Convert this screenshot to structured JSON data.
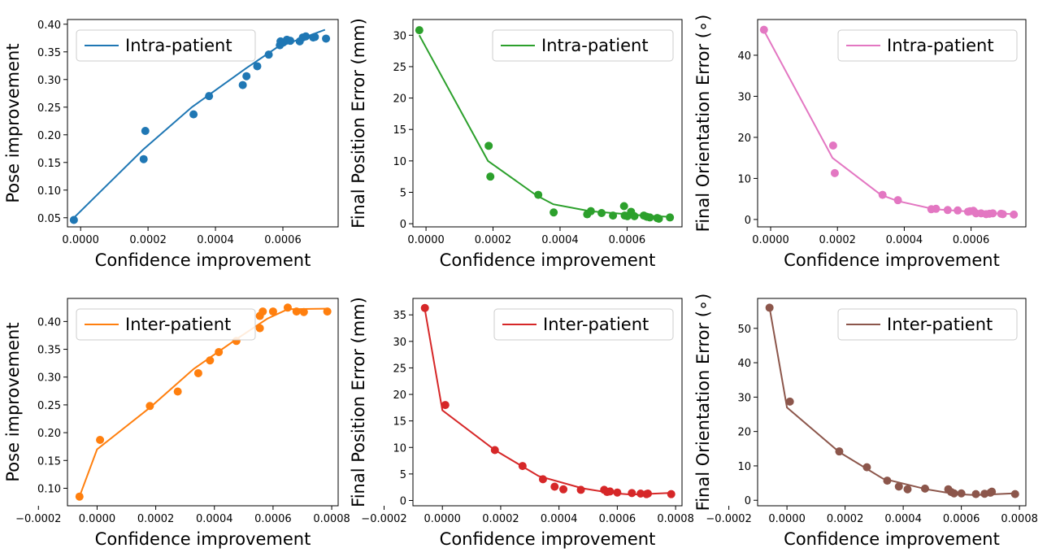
{
  "chart_data": [
    {
      "type": "scatter",
      "name": "pose-intra",
      "color": "#1f77b4",
      "xlabel": "Confidence improvement",
      "ylabel": "Pose improvement",
      "legend": "Intra-patient",
      "legend_position": "upper-left",
      "xlim": [
        -3.9e-05,
        0.000764
      ],
      "ylim": [
        0.0335,
        0.4085
      ],
      "xticks": [
        0,
        0.0002,
        0.0004,
        0.0006
      ],
      "xtick_labels": [
        "0.0000",
        "0.0002",
        "0.0004",
        "0.0006"
      ],
      "yticks": [
        0.05,
        0.1,
        0.15,
        0.2,
        0.25,
        0.3,
        0.35,
        0.4
      ],
      "ytick_labels": [
        "0.05",
        "0.10",
        "0.15",
        "0.20",
        "0.25",
        "0.30",
        "0.35",
        "0.40"
      ],
      "points": [
        [
          -2e-05,
          0.046
        ],
        [
          0.000187,
          0.156
        ],
        [
          0.000192,
          0.207
        ],
        [
          0.000335,
          0.237
        ],
        [
          0.000381,
          0.27
        ],
        [
          0.000481,
          0.29
        ],
        [
          0.000492,
          0.306
        ],
        [
          0.000524,
          0.324
        ],
        [
          0.000558,
          0.345
        ],
        [
          0.000591,
          0.362
        ],
        [
          0.000593,
          0.369
        ],
        [
          0.000601,
          0.367
        ],
        [
          0.000612,
          0.372
        ],
        [
          0.000622,
          0.37
        ],
        [
          0.00065,
          0.369
        ],
        [
          0.000659,
          0.376
        ],
        [
          0.000668,
          0.378
        ],
        [
          0.00069,
          0.376
        ],
        [
          0.000695,
          0.377
        ],
        [
          0.000728,
          0.374
        ]
      ],
      "line": [
        [
          -2e-05,
          0.05
        ],
        [
          0.000185,
          0.173
        ],
        [
          0.00033,
          0.25
        ],
        [
          0.00049,
          0.32
        ],
        [
          0.00058,
          0.357
        ],
        [
          0.00065,
          0.373
        ],
        [
          0.000725,
          0.39
        ]
      ]
    },
    {
      "type": "scatter",
      "name": "position-intra",
      "color": "#2ca02c",
      "xlabel": "Confidence improvement",
      "ylabel": "Final Position Error (mm)",
      "legend": "Intra-patient",
      "legend_position": "upper-right",
      "xlim": [
        -3.9e-05,
        0.000764
      ],
      "ylim": [
        -0.5,
        32.5
      ],
      "xticks": [
        0,
        0.0002,
        0.0004,
        0.0006
      ],
      "xtick_labels": [
        "0.0000",
        "0.0002",
        "0.0004",
        "0.0006"
      ],
      "yticks": [
        0,
        5,
        10,
        15,
        20,
        25,
        30
      ],
      "ytick_labels": [
        "0",
        "5",
        "10",
        "15",
        "20",
        "25",
        "30"
      ],
      "points": [
        [
          -2e-05,
          30.8
        ],
        [
          0.000187,
          12.4
        ],
        [
          0.000192,
          7.5
        ],
        [
          0.000335,
          4.6
        ],
        [
          0.000381,
          1.8
        ],
        [
          0.000481,
          1.5
        ],
        [
          0.000492,
          2.0
        ],
        [
          0.000524,
          1.7
        ],
        [
          0.000558,
          1.3
        ],
        [
          0.000591,
          2.8
        ],
        [
          0.000593,
          1.3
        ],
        [
          0.000601,
          1.2
        ],
        [
          0.000612,
          1.9
        ],
        [
          0.000622,
          1.2
        ],
        [
          0.00065,
          1.3
        ],
        [
          0.000659,
          1.1
        ],
        [
          0.000668,
          1.0
        ],
        [
          0.00069,
          0.9
        ],
        [
          0.000695,
          0.8
        ],
        [
          0.000728,
          1.0
        ]
      ],
      "line": [
        [
          -2e-05,
          30.0
        ],
        [
          0.000185,
          10.0
        ],
        [
          0.00033,
          4.5
        ],
        [
          0.00038,
          3.1
        ],
        [
          0.00049,
          2.0
        ],
        [
          0.00058,
          1.6
        ],
        [
          0.00065,
          1.3
        ],
        [
          0.000725,
          1.1
        ]
      ]
    },
    {
      "type": "scatter",
      "name": "orientation-intra",
      "color": "#e377c2",
      "xlabel": "Confidence improvement",
      "ylabel": "Final Orientation Error (∘)",
      "legend": "Intra-patient",
      "legend_position": "upper-right",
      "xlim": [
        -3.9e-05,
        0.000764
      ],
      "ylim": [
        -1.8,
        48.7
      ],
      "xticks": [
        0,
        0.0002,
        0.0004,
        0.0006
      ],
      "xtick_labels": [
        "0.0000",
        "0.0002",
        "0.0004",
        "0.0006"
      ],
      "yticks": [
        0,
        10,
        20,
        30,
        40
      ],
      "ytick_labels": [
        "0",
        "10",
        "20",
        "30",
        "40"
      ],
      "points": [
        [
          -2e-05,
          46.2
        ],
        [
          0.000187,
          18.0
        ],
        [
          0.000192,
          11.3
        ],
        [
          0.000335,
          6.0
        ],
        [
          0.000381,
          4.7
        ],
        [
          0.000481,
          2.5
        ],
        [
          0.000495,
          2.6
        ],
        [
          0.00053,
          2.3
        ],
        [
          0.00056,
          2.2
        ],
        [
          0.000591,
          1.9
        ],
        [
          0.000597,
          2.0
        ],
        [
          0.000607,
          2.1
        ],
        [
          0.000615,
          1.5
        ],
        [
          0.00063,
          1.5
        ],
        [
          0.000645,
          1.3
        ],
        [
          0.000655,
          1.4
        ],
        [
          0.000665,
          1.5
        ],
        [
          0.00069,
          1.4
        ],
        [
          0.000695,
          1.3
        ],
        [
          0.000728,
          1.2
        ]
      ],
      "line": [
        [
          -2e-05,
          46.0
        ],
        [
          0.000185,
          15.0
        ],
        [
          0.00033,
          6.0
        ],
        [
          0.00038,
          4.5
        ],
        [
          0.00049,
          2.5
        ],
        [
          0.00058,
          2.0
        ],
        [
          0.00065,
          1.5
        ],
        [
          0.000725,
          1.3
        ]
      ]
    },
    {
      "type": "scatter",
      "name": "pose-inter",
      "color": "#ff7f0e",
      "xlabel": "Confidence improvement",
      "ylabel": "Pose improvement",
      "legend": "Inter-patient",
      "legend_position": "upper-left",
      "xlim": [
        -0.000101,
        0.000822
      ],
      "ylim": [
        0.0685,
        0.4415
      ],
      "xticks": [
        -0.0002,
        0,
        0.0002,
        0.0004,
        0.0006,
        0.0008
      ],
      "xtick_labels": [
        "−0.0002",
        "0.0000",
        "0.0002",
        "0.0004",
        "0.0006",
        "0.0008"
      ],
      "yticks": [
        0.1,
        0.15,
        0.2,
        0.25,
        0.3,
        0.35,
        0.4
      ],
      "ytick_labels": [
        "0.10",
        "0.15",
        "0.20",
        "0.25",
        "0.30",
        "0.35",
        "0.40"
      ],
      "points": [
        [
          -6e-05,
          0.085
        ],
        [
          1e-05,
          0.187
        ],
        [
          0.00018,
          0.248
        ],
        [
          0.000275,
          0.274
        ],
        [
          0.000345,
          0.307
        ],
        [
          0.000385,
          0.33
        ],
        [
          0.000415,
          0.345
        ],
        [
          0.000475,
          0.365
        ],
        [
          0.000555,
          0.388
        ],
        [
          0.000555,
          0.41
        ],
        [
          0.000565,
          0.418
        ],
        [
          0.0006,
          0.418
        ],
        [
          0.00065,
          0.425
        ],
        [
          0.00068,
          0.418
        ],
        [
          0.000705,
          0.417
        ],
        [
          0.000785,
          0.418
        ]
      ],
      "line": [
        [
          -6e-05,
          0.085
        ],
        [
          0.0,
          0.17
        ],
        [
          0.00018,
          0.245
        ],
        [
          0.00033,
          0.315
        ],
        [
          0.00048,
          0.37
        ],
        [
          0.00058,
          0.405
        ],
        [
          0.00065,
          0.422
        ],
        [
          0.00078,
          0.423
        ]
      ]
    },
    {
      "type": "scatter",
      "name": "position-inter",
      "color": "#d62728",
      "xlabel": "Confidence improvement",
      "ylabel": "Final Position Error (mm)",
      "legend": "Inter-patient",
      "legend_position": "upper-right",
      "xlim": [
        -0.000101,
        0.000822
      ],
      "ylim": [
        -1.0,
        38.1
      ],
      "xticks": [
        -0.0002,
        0,
        0.0002,
        0.0004,
        0.0006,
        0.0008
      ],
      "xtick_labels": [
        "−0.0002",
        "0.0000",
        "0.0002",
        "0.0004",
        "0.0006",
        "0.0008"
      ],
      "yticks": [
        0,
        5,
        10,
        15,
        20,
        25,
        30,
        35
      ],
      "ytick_labels": [
        "0",
        "5",
        "10",
        "15",
        "20",
        "25",
        "30",
        "35"
      ],
      "points": [
        [
          -6e-05,
          36.3
        ],
        [
          1e-05,
          18.0
        ],
        [
          0.00018,
          9.5
        ],
        [
          0.000275,
          6.5
        ],
        [
          0.000345,
          4.0
        ],
        [
          0.000385,
          2.6
        ],
        [
          0.000415,
          2.1
        ],
        [
          0.000475,
          2.0
        ],
        [
          0.000555,
          2.0
        ],
        [
          0.000565,
          1.6
        ],
        [
          0.000575,
          1.7
        ],
        [
          0.0006,
          1.5
        ],
        [
          0.00065,
          1.4
        ],
        [
          0.00068,
          1.3
        ],
        [
          0.0007,
          1.2
        ],
        [
          0.000705,
          1.3
        ],
        [
          0.000785,
          1.2
        ]
      ],
      "line": [
        [
          -6e-05,
          36.0
        ],
        [
          0.0,
          17.0
        ],
        [
          0.00018,
          9.5
        ],
        [
          0.00033,
          4.6
        ],
        [
          0.00048,
          2.3
        ],
        [
          0.00058,
          1.4
        ],
        [
          0.00065,
          1.1
        ],
        [
          0.00078,
          1.4
        ]
      ]
    },
    {
      "type": "scatter",
      "name": "orientation-inter",
      "color": "#8c564b",
      "xlabel": "Confidence improvement",
      "ylabel": "Final Orientation Error (∘)",
      "legend": "Inter-patient",
      "legend_position": "upper-right",
      "xlim": [
        -0.000101,
        0.000822
      ],
      "ylim": [
        -1.6,
        58.7
      ],
      "xticks": [
        -0.0002,
        0,
        0.0002,
        0.0004,
        0.0006,
        0.0008
      ],
      "xtick_labels": [
        "−0.0002",
        "0.0000",
        "0.0002",
        "0.0004",
        "0.0006",
        "0.0008"
      ],
      "yticks": [
        0,
        10,
        20,
        30,
        40,
        50
      ],
      "ytick_labels": [
        "0",
        "10",
        "20",
        "30",
        "40",
        "50"
      ],
      "points": [
        [
          -6e-05,
          56.0
        ],
        [
          1e-05,
          28.7
        ],
        [
          0.00018,
          14.2
        ],
        [
          0.000275,
          9.6
        ],
        [
          0.000345,
          5.7
        ],
        [
          0.000385,
          4.0
        ],
        [
          0.000415,
          3.2
        ],
        [
          0.000475,
          3.4
        ],
        [
          0.000555,
          3.2
        ],
        [
          0.000565,
          2.4
        ],
        [
          0.000575,
          2.0
        ],
        [
          0.0006,
          2.0
        ],
        [
          0.00065,
          1.8
        ],
        [
          0.00068,
          1.9
        ],
        [
          0.0007,
          2.2
        ],
        [
          0.000705,
          2.5
        ],
        [
          0.000785,
          1.8
        ]
      ],
      "line": [
        [
          -6e-05,
          56.0
        ],
        [
          0.0,
          27.0
        ],
        [
          0.00018,
          14.0
        ],
        [
          0.00033,
          6.3
        ],
        [
          0.00048,
          3.2
        ],
        [
          0.00058,
          1.8
        ],
        [
          0.00065,
          1.5
        ],
        [
          0.00078,
          2.0
        ]
      ]
    }
  ]
}
